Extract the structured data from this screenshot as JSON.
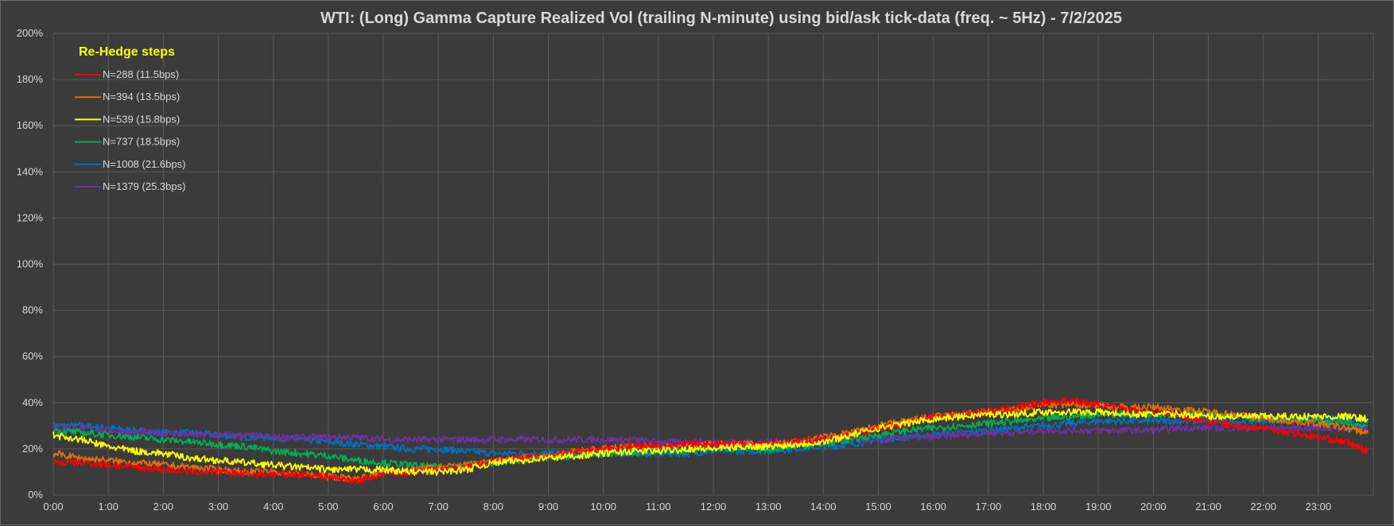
{
  "chart_data": {
    "type": "line",
    "title": "WTI: (Long) Gamma Capture Realized Vol (trailing N-minute) using bid/ask tick-data (freq. ~ 5Hz) - 7/2/2025",
    "xlabel": "",
    "ylabel": "",
    "x_ticks": [
      "0:00",
      "1:00",
      "2:00",
      "3:00",
      "4:00",
      "5:00",
      "6:00",
      "7:00",
      "8:00",
      "9:00",
      "10:00",
      "11:00",
      "12:00",
      "13:00",
      "14:00",
      "15:00",
      "16:00",
      "17:00",
      "18:00",
      "19:00",
      "20:00",
      "21:00",
      "22:00",
      "23:00"
    ],
    "x_hours": [
      0,
      0.5,
      1,
      1.5,
      2,
      2.5,
      3,
      3.5,
      4,
      4.5,
      5,
      5.5,
      6,
      6.5,
      7,
      7.5,
      8,
      8.5,
      9,
      9.5,
      10,
      10.5,
      11,
      11.5,
      12,
      12.5,
      13,
      13.5,
      14,
      14.5,
      15,
      15.5,
      16,
      16.5,
      17,
      17.5,
      18,
      18.5,
      19,
      19.5,
      20,
      20.5,
      21,
      21.5,
      22,
      22.5,
      23,
      23.5,
      23.9
    ],
    "xlim": [
      0,
      24
    ],
    "ylim": [
      0,
      2.0
    ],
    "y_ticks": [
      0,
      0.2,
      0.4,
      0.6,
      0.8,
      1.0,
      1.2,
      1.4,
      1.6,
      1.8,
      2.0
    ],
    "y_tick_labels": [
      "0%",
      "20%",
      "40%",
      "60%",
      "80%",
      "100%",
      "120%",
      "140%",
      "160%",
      "180%",
      "200%"
    ],
    "grid": true,
    "legend_title": "Re-Hedge steps",
    "legend_position": "top-left",
    "series": [
      {
        "name": "N=288 (11.5bps)",
        "color": "#ff0000",
        "values": [
          0.14,
          0.14,
          0.13,
          0.12,
          0.11,
          0.1,
          0.1,
          0.09,
          0.09,
          0.09,
          0.08,
          0.06,
          0.09,
          0.1,
          0.11,
          0.12,
          0.15,
          0.16,
          0.17,
          0.19,
          0.2,
          0.21,
          0.21,
          0.22,
          0.22,
          0.22,
          0.22,
          0.23,
          0.24,
          0.26,
          0.29,
          0.31,
          0.34,
          0.35,
          0.36,
          0.38,
          0.4,
          0.41,
          0.39,
          0.37,
          0.36,
          0.34,
          0.32,
          0.3,
          0.29,
          0.27,
          0.25,
          0.23,
          0.19
        ]
      },
      {
        "name": "N=394 (13.5bps)",
        "color": "#e46c0a",
        "values": [
          0.18,
          0.16,
          0.15,
          0.14,
          0.13,
          0.12,
          0.11,
          0.1,
          0.1,
          0.09,
          0.08,
          0.07,
          0.1,
          0.11,
          0.12,
          0.13,
          0.15,
          0.16,
          0.17,
          0.19,
          0.2,
          0.21,
          0.21,
          0.21,
          0.22,
          0.22,
          0.22,
          0.23,
          0.25,
          0.27,
          0.3,
          0.32,
          0.34,
          0.35,
          0.36,
          0.37,
          0.39,
          0.39,
          0.39,
          0.38,
          0.38,
          0.37,
          0.36,
          0.35,
          0.33,
          0.32,
          0.31,
          0.29,
          0.27
        ]
      },
      {
        "name": "N=539 (15.8bps)",
        "color": "#ffff00",
        "values": [
          0.26,
          0.24,
          0.21,
          0.19,
          0.18,
          0.16,
          0.15,
          0.14,
          0.13,
          0.12,
          0.11,
          0.11,
          0.11,
          0.1,
          0.1,
          0.11,
          0.14,
          0.15,
          0.16,
          0.17,
          0.18,
          0.19,
          0.19,
          0.2,
          0.2,
          0.21,
          0.21,
          0.22,
          0.23,
          0.26,
          0.29,
          0.31,
          0.33,
          0.34,
          0.35,
          0.35,
          0.36,
          0.36,
          0.36,
          0.35,
          0.35,
          0.35,
          0.34,
          0.34,
          0.34,
          0.34,
          0.34,
          0.34,
          0.33
        ]
      },
      {
        "name": "N=737 (18.5bps)",
        "color": "#00b050",
        "values": [
          0.28,
          0.27,
          0.26,
          0.25,
          0.24,
          0.23,
          0.22,
          0.21,
          0.19,
          0.18,
          0.17,
          0.15,
          0.14,
          0.13,
          0.12,
          0.13,
          0.14,
          0.15,
          0.16,
          0.17,
          0.18,
          0.18,
          0.19,
          0.19,
          0.2,
          0.2,
          0.2,
          0.21,
          0.22,
          0.24,
          0.26,
          0.28,
          0.29,
          0.3,
          0.31,
          0.32,
          0.33,
          0.34,
          0.35,
          0.35,
          0.35,
          0.35,
          0.35,
          0.34,
          0.33,
          0.33,
          0.32,
          0.31,
          0.3
        ]
      },
      {
        "name": "N=1008 (21.6bps)",
        "color": "#0070c0",
        "values": [
          0.3,
          0.3,
          0.29,
          0.28,
          0.27,
          0.27,
          0.26,
          0.25,
          0.25,
          0.24,
          0.23,
          0.22,
          0.21,
          0.2,
          0.2,
          0.19,
          0.18,
          0.18,
          0.18,
          0.18,
          0.18,
          0.18,
          0.18,
          0.18,
          0.19,
          0.19,
          0.19,
          0.2,
          0.21,
          0.22,
          0.24,
          0.25,
          0.26,
          0.27,
          0.28,
          0.29,
          0.3,
          0.31,
          0.32,
          0.32,
          0.32,
          0.32,
          0.32,
          0.32,
          0.32,
          0.33,
          0.33,
          0.33,
          0.32
        ]
      },
      {
        "name": "N=1379 (25.3bps)",
        "color": "#7030a0",
        "values": [
          0.29,
          0.29,
          0.28,
          0.27,
          0.27,
          0.26,
          0.26,
          0.26,
          0.25,
          0.25,
          0.25,
          0.25,
          0.24,
          0.24,
          0.24,
          0.24,
          0.24,
          0.24,
          0.24,
          0.24,
          0.24,
          0.24,
          0.23,
          0.23,
          0.23,
          0.23,
          0.23,
          0.23,
          0.23,
          0.24,
          0.24,
          0.25,
          0.25,
          0.26,
          0.27,
          0.27,
          0.28,
          0.28,
          0.28,
          0.28,
          0.28,
          0.29,
          0.29,
          0.29,
          0.29,
          0.29,
          0.29,
          0.29,
          0.29
        ]
      }
    ]
  }
}
